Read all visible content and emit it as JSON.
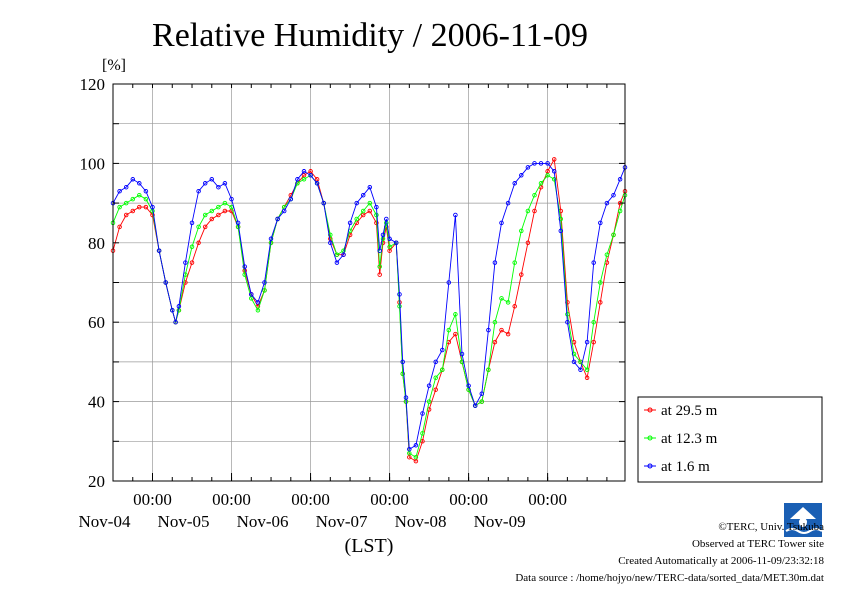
{
  "chart_data": {
    "type": "line",
    "title": "Relative Humidity / 2006-11-09",
    "ylabel": "[%]",
    "xlabel": "(LST)",
    "ylim": [
      20,
      120
    ],
    "yticks": [
      20,
      40,
      60,
      80,
      100,
      120
    ],
    "xlim": [
      "2006-11-03T12:00",
      "2006-11-09T23:30"
    ],
    "xticks": [
      {
        "time": "2006-11-04T00:00",
        "time_label": "00:00",
        "date_label": "Nov-04"
      },
      {
        "time": "2006-11-05T00:00",
        "time_label": "00:00",
        "date_label": "Nov-05"
      },
      {
        "time": "2006-11-06T00:00",
        "time_label": "00:00",
        "date_label": "Nov-06"
      },
      {
        "time": "2006-11-07T00:00",
        "time_label": "00:00",
        "date_label": "Nov-07"
      },
      {
        "time": "2006-11-08T00:00",
        "time_label": "00:00",
        "date_label": "Nov-08"
      },
      {
        "time": "2006-11-09T00:00",
        "time_label": "00:00",
        "date_label": "Nov-09"
      }
    ],
    "grid": true,
    "legend_position": "right",
    "series": [
      {
        "name": "at 29.5 m",
        "color": "#ff0000",
        "points": [
          [
            "2006-11-03T12:00",
            78
          ],
          [
            "2006-11-03T14:00",
            84
          ],
          [
            "2006-11-03T16:00",
            87
          ],
          [
            "2006-11-03T18:00",
            88
          ],
          [
            "2006-11-03T20:00",
            89
          ],
          [
            "2006-11-03T22:00",
            89
          ],
          [
            "2006-11-04T00:00",
            87
          ],
          [
            "2006-11-04T02:00",
            78
          ],
          [
            "2006-11-04T04:00",
            70
          ],
          [
            "2006-11-04T06:00",
            63
          ],
          [
            "2006-11-04T07:00",
            60
          ],
          [
            "2006-11-04T08:00",
            63
          ],
          [
            "2006-11-04T10:00",
            70
          ],
          [
            "2006-11-04T12:00",
            75
          ],
          [
            "2006-11-04T14:00",
            80
          ],
          [
            "2006-11-04T16:00",
            84
          ],
          [
            "2006-11-04T18:00",
            86
          ],
          [
            "2006-11-04T20:00",
            87
          ],
          [
            "2006-11-04T22:00",
            88
          ],
          [
            "2006-11-05T00:00",
            88
          ],
          [
            "2006-11-05T02:00",
            84
          ],
          [
            "2006-11-05T04:00",
            73
          ],
          [
            "2006-11-05T06:00",
            67
          ],
          [
            "2006-11-05T08:00",
            64
          ],
          [
            "2006-11-05T10:00",
            68
          ],
          [
            "2006-11-05T12:00",
            80
          ],
          [
            "2006-11-05T14:00",
            86
          ],
          [
            "2006-11-05T16:00",
            89
          ],
          [
            "2006-11-05T18:00",
            92
          ],
          [
            "2006-11-05T20:00",
            95
          ],
          [
            "2006-11-05T22:00",
            97
          ],
          [
            "2006-11-06T00:00",
            98
          ],
          [
            "2006-11-06T02:00",
            96
          ],
          [
            "2006-11-06T04:00",
            90
          ],
          [
            "2006-11-06T06:00",
            81
          ],
          [
            "2006-11-06T08:00",
            77
          ],
          [
            "2006-11-06T10:00",
            77
          ],
          [
            "2006-11-06T12:00",
            82
          ],
          [
            "2006-11-06T14:00",
            85
          ],
          [
            "2006-11-06T16:00",
            87
          ],
          [
            "2006-11-06T18:00",
            88
          ],
          [
            "2006-11-06T20:00",
            85
          ],
          [
            "2006-11-06T21:00",
            72
          ],
          [
            "2006-11-06T22:00",
            80
          ],
          [
            "2006-11-06T23:00",
            84
          ],
          [
            "2006-11-07T00:00",
            78
          ],
          [
            "2006-11-07T02:00",
            80
          ],
          [
            "2006-11-07T03:00",
            65
          ],
          [
            "2006-11-07T04:00",
            47
          ],
          [
            "2006-11-07T05:00",
            40
          ],
          [
            "2006-11-07T06:00",
            26
          ],
          [
            "2006-11-07T08:00",
            25
          ],
          [
            "2006-11-07T10:00",
            30
          ],
          [
            "2006-11-07T12:00",
            38
          ],
          [
            "2006-11-07T14:00",
            43
          ],
          [
            "2006-11-07T16:00",
            48
          ],
          [
            "2006-11-07T18:00",
            55
          ],
          [
            "2006-11-07T20:00",
            57
          ],
          [
            "2006-11-07T22:00",
            50
          ],
          [
            "2006-11-08T00:00",
            43
          ],
          [
            "2006-11-08T02:00",
            39
          ],
          [
            "2006-11-08T04:00",
            40
          ],
          [
            "2006-11-08T06:00",
            48
          ],
          [
            "2006-11-08T08:00",
            55
          ],
          [
            "2006-11-08T10:00",
            58
          ],
          [
            "2006-11-08T12:00",
            57
          ],
          [
            "2006-11-08T14:00",
            64
          ],
          [
            "2006-11-08T16:00",
            72
          ],
          [
            "2006-11-08T18:00",
            80
          ],
          [
            "2006-11-08T20:00",
            88
          ],
          [
            "2006-11-08T22:00",
            94
          ],
          [
            "2006-11-09T00:00",
            98
          ],
          [
            "2006-11-09T02:00",
            101
          ],
          [
            "2006-11-09T04:00",
            88
          ],
          [
            "2006-11-09T06:00",
            65
          ],
          [
            "2006-11-09T08:00",
            55
          ],
          [
            "2006-11-09T10:00",
            50
          ],
          [
            "2006-11-09T12:00",
            46
          ],
          [
            "2006-11-09T14:00",
            55
          ],
          [
            "2006-11-09T16:00",
            65
          ],
          [
            "2006-11-09T18:00",
            75
          ],
          [
            "2006-11-09T20:00",
            82
          ],
          [
            "2006-11-09T22:00",
            90
          ],
          [
            "2006-11-09T23:30",
            93
          ]
        ]
      },
      {
        "name": "at 12.3 m",
        "color": "#00ff00",
        "points": [
          [
            "2006-11-03T12:00",
            85
          ],
          [
            "2006-11-03T14:00",
            89
          ],
          [
            "2006-11-03T16:00",
            90
          ],
          [
            "2006-11-03T18:00",
            91
          ],
          [
            "2006-11-03T20:00",
            92
          ],
          [
            "2006-11-03T22:00",
            91
          ],
          [
            "2006-11-04T00:00",
            88
          ],
          [
            "2006-11-04T02:00",
            78
          ],
          [
            "2006-11-04T04:00",
            70
          ],
          [
            "2006-11-04T06:00",
            63
          ],
          [
            "2006-11-04T07:00",
            60
          ],
          [
            "2006-11-04T08:00",
            63
          ],
          [
            "2006-11-04T10:00",
            72
          ],
          [
            "2006-11-04T12:00",
            79
          ],
          [
            "2006-11-04T14:00",
            84
          ],
          [
            "2006-11-04T16:00",
            87
          ],
          [
            "2006-11-04T18:00",
            88
          ],
          [
            "2006-11-04T20:00",
            89
          ],
          [
            "2006-11-04T22:00",
            90
          ],
          [
            "2006-11-05T00:00",
            89
          ],
          [
            "2006-11-05T02:00",
            84
          ],
          [
            "2006-11-05T04:00",
            72
          ],
          [
            "2006-11-05T06:00",
            66
          ],
          [
            "2006-11-05T08:00",
            63
          ],
          [
            "2006-11-05T10:00",
            68
          ],
          [
            "2006-11-05T12:00",
            80
          ],
          [
            "2006-11-05T14:00",
            86
          ],
          [
            "2006-11-05T16:00",
            89
          ],
          [
            "2006-11-05T18:00",
            91
          ],
          [
            "2006-11-05T20:00",
            95
          ],
          [
            "2006-11-05T22:00",
            96
          ],
          [
            "2006-11-06T00:00",
            97
          ],
          [
            "2006-11-06T02:00",
            95
          ],
          [
            "2006-11-06T04:00",
            90
          ],
          [
            "2006-11-06T06:00",
            82
          ],
          [
            "2006-11-06T08:00",
            77
          ],
          [
            "2006-11-06T10:00",
            78
          ],
          [
            "2006-11-06T12:00",
            83
          ],
          [
            "2006-11-06T14:00",
            86
          ],
          [
            "2006-11-06T16:00",
            88
          ],
          [
            "2006-11-06T18:00",
            90
          ],
          [
            "2006-11-06T20:00",
            87
          ],
          [
            "2006-11-06T21:00",
            74
          ],
          [
            "2006-11-06T22:00",
            81
          ],
          [
            "2006-11-06T23:00",
            85
          ],
          [
            "2006-11-07T00:00",
            79
          ],
          [
            "2006-11-07T02:00",
            80
          ],
          [
            "2006-11-07T03:00",
            64
          ],
          [
            "2006-11-07T04:00",
            47
          ],
          [
            "2006-11-07T05:00",
            40
          ],
          [
            "2006-11-07T06:00",
            27
          ],
          [
            "2006-11-07T08:00",
            26
          ],
          [
            "2006-11-07T10:00",
            32
          ],
          [
            "2006-11-07T12:00",
            40
          ],
          [
            "2006-11-07T14:00",
            46
          ],
          [
            "2006-11-07T16:00",
            48
          ],
          [
            "2006-11-07T18:00",
            58
          ],
          [
            "2006-11-07T20:00",
            62
          ],
          [
            "2006-11-07T22:00",
            50
          ],
          [
            "2006-11-08T00:00",
            43
          ],
          [
            "2006-11-08T02:00",
            39
          ],
          [
            "2006-11-08T04:00",
            40
          ],
          [
            "2006-11-08T06:00",
            48
          ],
          [
            "2006-11-08T08:00",
            60
          ],
          [
            "2006-11-08T10:00",
            66
          ],
          [
            "2006-11-08T12:00",
            65
          ],
          [
            "2006-11-08T14:00",
            75
          ],
          [
            "2006-11-08T16:00",
            83
          ],
          [
            "2006-11-08T18:00",
            88
          ],
          [
            "2006-11-08T20:00",
            92
          ],
          [
            "2006-11-08T22:00",
            95
          ],
          [
            "2006-11-09T00:00",
            97
          ],
          [
            "2006-11-09T02:00",
            96
          ],
          [
            "2006-11-09T04:00",
            86
          ],
          [
            "2006-11-09T06:00",
            62
          ],
          [
            "2006-11-09T08:00",
            52
          ],
          [
            "2006-11-09T10:00",
            50
          ],
          [
            "2006-11-09T12:00",
            48
          ],
          [
            "2006-11-09T14:00",
            60
          ],
          [
            "2006-11-09T16:00",
            70
          ],
          [
            "2006-11-09T18:00",
            77
          ],
          [
            "2006-11-09T20:00",
            82
          ],
          [
            "2006-11-09T22:00",
            88
          ],
          [
            "2006-11-09T23:30",
            92
          ]
        ]
      },
      {
        "name": "at 1.6 m",
        "color": "#0000ff",
        "points": [
          [
            "2006-11-03T12:00",
            90
          ],
          [
            "2006-11-03T14:00",
            93
          ],
          [
            "2006-11-03T16:00",
            94
          ],
          [
            "2006-11-03T18:00",
            96
          ],
          [
            "2006-11-03T20:00",
            95
          ],
          [
            "2006-11-03T22:00",
            93
          ],
          [
            "2006-11-04T00:00",
            89
          ],
          [
            "2006-11-04T02:00",
            78
          ],
          [
            "2006-11-04T04:00",
            70
          ],
          [
            "2006-11-04T06:00",
            63
          ],
          [
            "2006-11-04T07:00",
            60
          ],
          [
            "2006-11-04T08:00",
            64
          ],
          [
            "2006-11-04T10:00",
            75
          ],
          [
            "2006-11-04T12:00",
            85
          ],
          [
            "2006-11-04T14:00",
            93
          ],
          [
            "2006-11-04T16:00",
            95
          ],
          [
            "2006-11-04T18:00",
            96
          ],
          [
            "2006-11-04T20:00",
            94
          ],
          [
            "2006-11-04T22:00",
            95
          ],
          [
            "2006-11-05T00:00",
            91
          ],
          [
            "2006-11-05T02:00",
            85
          ],
          [
            "2006-11-05T04:00",
            74
          ],
          [
            "2006-11-05T06:00",
            67
          ],
          [
            "2006-11-05T08:00",
            65
          ],
          [
            "2006-11-05T10:00",
            70
          ],
          [
            "2006-11-05T12:00",
            81
          ],
          [
            "2006-11-05T14:00",
            86
          ],
          [
            "2006-11-05T16:00",
            88
          ],
          [
            "2006-11-05T18:00",
            91
          ],
          [
            "2006-11-05T20:00",
            96
          ],
          [
            "2006-11-05T22:00",
            98
          ],
          [
            "2006-11-06T00:00",
            97
          ],
          [
            "2006-11-06T02:00",
            95
          ],
          [
            "2006-11-06T04:00",
            90
          ],
          [
            "2006-11-06T06:00",
            80
          ],
          [
            "2006-11-06T08:00",
            75
          ],
          [
            "2006-11-06T10:00",
            77
          ],
          [
            "2006-11-06T12:00",
            85
          ],
          [
            "2006-11-06T14:00",
            90
          ],
          [
            "2006-11-06T16:00",
            92
          ],
          [
            "2006-11-06T18:00",
            94
          ],
          [
            "2006-11-06T20:00",
            89
          ],
          [
            "2006-11-06T21:00",
            78
          ],
          [
            "2006-11-06T22:00",
            82
          ],
          [
            "2006-11-06T23:00",
            86
          ],
          [
            "2006-11-07T00:00",
            81
          ],
          [
            "2006-11-07T02:00",
            80
          ],
          [
            "2006-11-07T03:00",
            67
          ],
          [
            "2006-11-07T04:00",
            50
          ],
          [
            "2006-11-07T05:00",
            41
          ],
          [
            "2006-11-07T06:00",
            28
          ],
          [
            "2006-11-07T08:00",
            29
          ],
          [
            "2006-11-07T10:00",
            37
          ],
          [
            "2006-11-07T12:00",
            44
          ],
          [
            "2006-11-07T14:00",
            50
          ],
          [
            "2006-11-07T16:00",
            53
          ],
          [
            "2006-11-07T18:00",
            70
          ],
          [
            "2006-11-07T20:00",
            87
          ],
          [
            "2006-11-07T22:00",
            52
          ],
          [
            "2006-11-08T00:00",
            44
          ],
          [
            "2006-11-08T02:00",
            39
          ],
          [
            "2006-11-08T04:00",
            42
          ],
          [
            "2006-11-08T06:00",
            58
          ],
          [
            "2006-11-08T08:00",
            75
          ],
          [
            "2006-11-08T10:00",
            85
          ],
          [
            "2006-11-08T12:00",
            90
          ],
          [
            "2006-11-08T14:00",
            95
          ],
          [
            "2006-11-08T16:00",
            97
          ],
          [
            "2006-11-08T18:00",
            99
          ],
          [
            "2006-11-08T20:00",
            100
          ],
          [
            "2006-11-08T22:00",
            100
          ],
          [
            "2006-11-09T00:00",
            100
          ],
          [
            "2006-11-09T02:00",
            98
          ],
          [
            "2006-11-09T04:00",
            83
          ],
          [
            "2006-11-09T06:00",
            60
          ],
          [
            "2006-11-09T08:00",
            50
          ],
          [
            "2006-11-09T10:00",
            48
          ],
          [
            "2006-11-09T12:00",
            55
          ],
          [
            "2006-11-09T14:00",
            75
          ],
          [
            "2006-11-09T16:00",
            85
          ],
          [
            "2006-11-09T18:00",
            90
          ],
          [
            "2006-11-09T20:00",
            92
          ],
          [
            "2006-11-09T22:00",
            96
          ],
          [
            "2006-11-09T23:30",
            99
          ]
        ]
      }
    ]
  },
  "footer": {
    "copyright": "©TERC, Univ. Tsukuba",
    "observed": "Observed at TERC Tower site",
    "created": "Created Automatically at 2006-11-09/23:32:18",
    "source": "Data source : /home/hojyo/new/TERC-data/sorted_data/MET.30m.dat",
    "logo_text": "TERC"
  }
}
